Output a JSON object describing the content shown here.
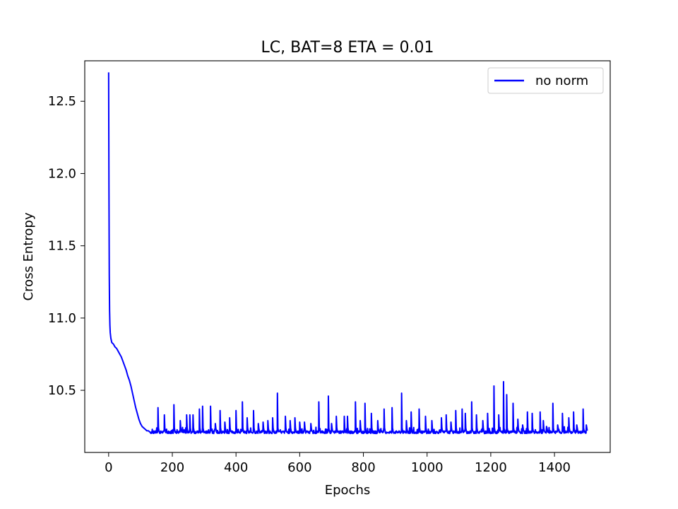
{
  "chart_data": {
    "type": "line",
    "title": "LC, BAT=8 ETA = 0.01",
    "xlabel": "Epochs",
    "ylabel": "Cross Entropy",
    "xlim": [
      -75,
      1575
    ],
    "ylim": [
      10.07,
      12.78
    ],
    "xticks": [
      0,
      200,
      400,
      600,
      800,
      1000,
      1200,
      1400
    ],
    "yticks": [
      10.5,
      11.0,
      11.5,
      12.0,
      12.5
    ],
    "legend": {
      "position": "top-right",
      "entries": [
        "no norm"
      ]
    },
    "grid": false,
    "series": [
      {
        "name": "no norm",
        "color": "#0000ff",
        "baseline": 10.21,
        "x": [
          0,
          1,
          2,
          3,
          4,
          5,
          7,
          10,
          15,
          20,
          25,
          30,
          35,
          40,
          45,
          50,
          55,
          60,
          65,
          70,
          75,
          80,
          85,
          90,
          95,
          100,
          105,
          110,
          115,
          120,
          125,
          130
        ],
        "y": [
          12.7,
          11.9,
          11.3,
          11.05,
          10.95,
          10.9,
          10.86,
          10.83,
          10.82,
          10.8,
          10.79,
          10.77,
          10.75,
          10.73,
          10.7,
          10.67,
          10.64,
          10.6,
          10.57,
          10.53,
          10.48,
          10.43,
          10.38,
          10.34,
          10.3,
          10.27,
          10.25,
          10.24,
          10.23,
          10.22,
          10.22,
          10.21
        ],
        "spikes": [
          {
            "x": 155,
            "y": 10.38
          },
          {
            "x": 175,
            "y": 10.33
          },
          {
            "x": 205,
            "y": 10.4
          },
          {
            "x": 225,
            "y": 10.29
          },
          {
            "x": 245,
            "y": 10.33
          },
          {
            "x": 255,
            "y": 10.33
          },
          {
            "x": 265,
            "y": 10.33
          },
          {
            "x": 285,
            "y": 10.37
          },
          {
            "x": 295,
            "y": 10.39
          },
          {
            "x": 320,
            "y": 10.39
          },
          {
            "x": 335,
            "y": 10.27
          },
          {
            "x": 350,
            "y": 10.36
          },
          {
            "x": 365,
            "y": 10.28
          },
          {
            "x": 380,
            "y": 10.31
          },
          {
            "x": 400,
            "y": 10.36
          },
          {
            "x": 420,
            "y": 10.42
          },
          {
            "x": 435,
            "y": 10.31
          },
          {
            "x": 455,
            "y": 10.36
          },
          {
            "x": 470,
            "y": 10.27
          },
          {
            "x": 485,
            "y": 10.28
          },
          {
            "x": 500,
            "y": 10.29
          },
          {
            "x": 515,
            "y": 10.31
          },
          {
            "x": 530,
            "y": 10.48
          },
          {
            "x": 555,
            "y": 10.32
          },
          {
            "x": 570,
            "y": 10.29
          },
          {
            "x": 585,
            "y": 10.31
          },
          {
            "x": 600,
            "y": 10.28
          },
          {
            "x": 615,
            "y": 10.28
          },
          {
            "x": 635,
            "y": 10.27
          },
          {
            "x": 660,
            "y": 10.42
          },
          {
            "x": 690,
            "y": 10.46
          },
          {
            "x": 700,
            "y": 10.27
          },
          {
            "x": 715,
            "y": 10.32
          },
          {
            "x": 740,
            "y": 10.32
          },
          {
            "x": 750,
            "y": 10.32
          },
          {
            "x": 775,
            "y": 10.42
          },
          {
            "x": 790,
            "y": 10.29
          },
          {
            "x": 805,
            "y": 10.41
          },
          {
            "x": 825,
            "y": 10.34
          },
          {
            "x": 845,
            "y": 10.29
          },
          {
            "x": 865,
            "y": 10.37
          },
          {
            "x": 890,
            "y": 10.38
          },
          {
            "x": 920,
            "y": 10.48
          },
          {
            "x": 935,
            "y": 10.29
          },
          {
            "x": 950,
            "y": 10.35
          },
          {
            "x": 975,
            "y": 10.37
          },
          {
            "x": 995,
            "y": 10.32
          },
          {
            "x": 1015,
            "y": 10.29
          },
          {
            "x": 1045,
            "y": 10.31
          },
          {
            "x": 1060,
            "y": 10.33
          },
          {
            "x": 1075,
            "y": 10.28
          },
          {
            "x": 1090,
            "y": 10.36
          },
          {
            "x": 1110,
            "y": 10.37
          },
          {
            "x": 1120,
            "y": 10.34
          },
          {
            "x": 1140,
            "y": 10.42
          },
          {
            "x": 1155,
            "y": 10.33
          },
          {
            "x": 1175,
            "y": 10.29
          },
          {
            "x": 1190,
            "y": 10.34
          },
          {
            "x": 1210,
            "y": 10.53
          },
          {
            "x": 1225,
            "y": 10.33
          },
          {
            "x": 1240,
            "y": 10.56
          },
          {
            "x": 1250,
            "y": 10.47
          },
          {
            "x": 1270,
            "y": 10.41
          },
          {
            "x": 1285,
            "y": 10.3
          },
          {
            "x": 1300,
            "y": 10.26
          },
          {
            "x": 1315,
            "y": 10.35
          },
          {
            "x": 1330,
            "y": 10.34
          },
          {
            "x": 1355,
            "y": 10.35
          },
          {
            "x": 1365,
            "y": 10.29
          },
          {
            "x": 1375,
            "y": 10.25
          },
          {
            "x": 1395,
            "y": 10.41
          },
          {
            "x": 1410,
            "y": 10.26
          },
          {
            "x": 1425,
            "y": 10.34
          },
          {
            "x": 1445,
            "y": 10.31
          },
          {
            "x": 1460,
            "y": 10.35
          },
          {
            "x": 1470,
            "y": 10.26
          },
          {
            "x": 1490,
            "y": 10.37
          },
          {
            "x": 1500,
            "y": 10.26
          }
        ],
        "x_end": 1500
      }
    ]
  }
}
